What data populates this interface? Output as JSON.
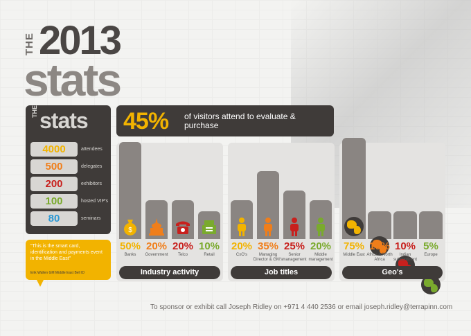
{
  "header": {
    "the": "THE",
    "year": "2013",
    "stats": "stats"
  },
  "panel": {
    "the": "THE",
    "title": "stats"
  },
  "stats": [
    {
      "value": "4000",
      "label": "attendees",
      "color": "#f2b300"
    },
    {
      "value": "500",
      "label": "delegates",
      "color": "#f07e1a"
    },
    {
      "value": "200",
      "label": "exhibitors",
      "color": "#c8201d"
    },
    {
      "value": "100",
      "label": "hosted VIP's",
      "color": "#7aaa2d"
    },
    {
      "value": "80",
      "label": "seminars",
      "color": "#2a98d4"
    }
  ],
  "quote": {
    "text": "\"This is the smart card, identification and payments event in the Middle East\"",
    "attribution": "Erik Wallen  GM Middle East  Bell ID"
  },
  "headline": {
    "value": "45%",
    "text": "of visitors attend to evaluate & purchase"
  },
  "chart_data": [
    {
      "type": "bar",
      "title": "Industry activity",
      "categories": [
        "Banks",
        "Government",
        "Telco",
        "Retail"
      ],
      "values": [
        50,
        20,
        20,
        10
      ],
      "labels": [
        "50%",
        "20%",
        "20%",
        "10%"
      ],
      "colors": [
        "#f2b300",
        "#f07e1a",
        "#c8201d",
        "#7aaa2d"
      ],
      "icons": [
        "money-bag-icon",
        "government-building-icon",
        "telephone-icon",
        "cash-register-icon"
      ]
    },
    {
      "type": "bar",
      "title": "Job titles",
      "categories": [
        "CxO's",
        "Managing Director & GM's",
        "Senior management",
        "Middle management"
      ],
      "values": [
        20,
        35,
        25,
        20
      ],
      "labels": [
        "20%",
        "35%",
        "25%",
        "20%"
      ],
      "colors": [
        "#f2b300",
        "#f07e1a",
        "#c8201d",
        "#7aaa2d"
      ],
      "icons": [
        "person-icon",
        "person-icon",
        "person-icon",
        "person-icon"
      ]
    },
    {
      "type": "bar",
      "title": "Geo's",
      "categories": [
        "Middle East",
        "Africa & North Africa",
        "Indian subcontinent",
        "Europe"
      ],
      "values": [
        75,
        10,
        10,
        5
      ],
      "labels": [
        "75%",
        "10%",
        "10%",
        "5%"
      ],
      "colors": [
        "#f2b300",
        "#f07e1a",
        "#c8201d",
        "#7aaa2d"
      ],
      "icons": [
        "globe-icon",
        "globe-icon",
        "globe-icon",
        "globe-icon"
      ]
    }
  ],
  "footer": {
    "text": "To sponsor or exhibit call Joseph Ridley on +971 4 440 2536 or email joseph.ridley@terrapinn.com"
  }
}
